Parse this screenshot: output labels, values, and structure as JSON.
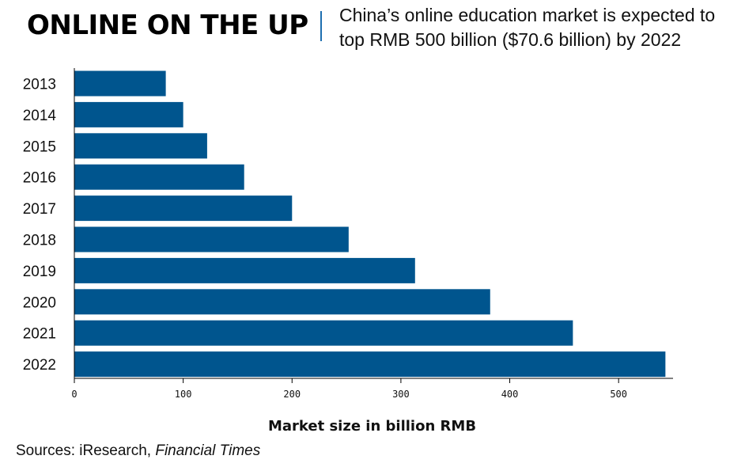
{
  "header": {
    "title": "ONLINE ON THE UP",
    "subtitle": "China’s online education market is expected to top RMB 500 billion ($70.6 billion) by 2022"
  },
  "footer": {
    "sources_label": "Sources: iResearch,",
    "sources_italic": "Financial Times"
  },
  "colors": {
    "bar": "#00558E",
    "divider": "#1E6FB0",
    "axis": "#000000"
  },
  "chart_data": {
    "type": "bar",
    "orientation": "horizontal",
    "categories": [
      "2013",
      "2014",
      "2015",
      "2016",
      "2017",
      "2018",
      "2019",
      "2020",
      "2021",
      "2022"
    ],
    "values": [
      84,
      100,
      122,
      156,
      200,
      252,
      313,
      382,
      458,
      543
    ],
    "xlabel": "Market size in billion RMB",
    "ylabel": "",
    "xlim": [
      0,
      550
    ],
    "xticks": [
      0,
      100,
      200,
      300,
      400,
      500
    ],
    "grid": false
  }
}
